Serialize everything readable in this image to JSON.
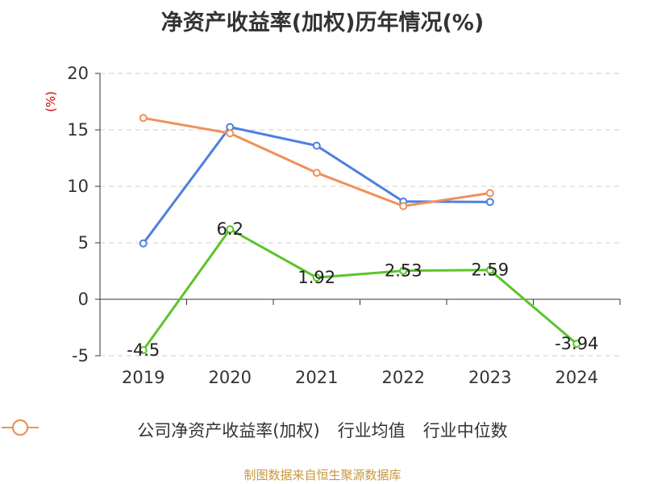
{
  "chart_data": {
    "type": "line",
    "title": "净资产收益率(加权)历年情况(%)",
    "ylabel": "(%)",
    "xlabel": "",
    "categories": [
      "2019",
      "2020",
      "2021",
      "2022",
      "2023",
      "2024"
    ],
    "ylim": [
      -5,
      20
    ],
    "yticks": [
      -5,
      0,
      5,
      10,
      15,
      20
    ],
    "grid": true,
    "legend_position": "bottom",
    "series": [
      {
        "name": "公司净资产收益率(加权)",
        "color": "#5bc42a",
        "values": [
          -4.5,
          6.2,
          1.92,
          2.53,
          2.59,
          -3.94
        ],
        "labels": [
          "-4.5",
          "6.2",
          "1.92",
          "2.53",
          "2.59",
          "-3.94"
        ]
      },
      {
        "name": "行业均值",
        "color": "#4f7fdc",
        "values": [
          4.95,
          15.25,
          13.6,
          8.65,
          8.62,
          null
        ]
      },
      {
        "name": "行业中位数",
        "color": "#f0905a",
        "values": [
          16.05,
          14.7,
          11.2,
          8.25,
          9.4,
          null
        ]
      }
    ]
  },
  "footer": "制图数据来自恒生聚源数据库"
}
